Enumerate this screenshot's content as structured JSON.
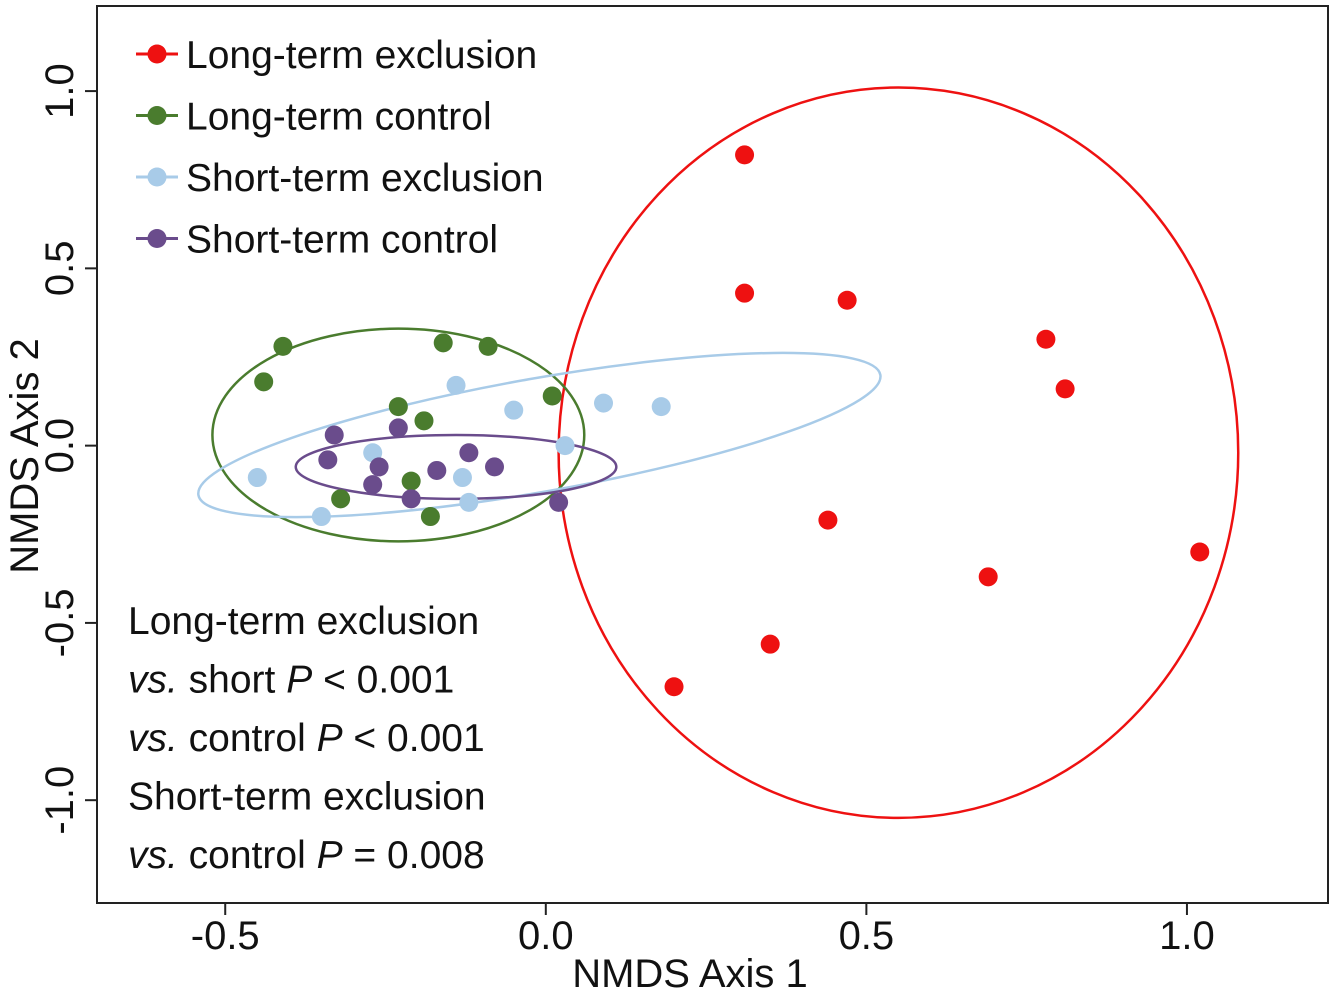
{
  "chart_data": {
    "type": "scatter",
    "xlabel": "NMDS Axis 1",
    "ylabel": "NMDS Axis 2",
    "xlim": [
      -0.7,
      1.22
    ],
    "ylim": [
      -1.29,
      1.24
    ],
    "xticks": [
      -0.5,
      0.0,
      0.5,
      1.0
    ],
    "xtick_labels": [
      "-0.5",
      "0.0",
      "0.5",
      "1.0"
    ],
    "yticks": [
      -1.0,
      -0.5,
      0.0,
      0.5,
      1.0
    ],
    "ytick_labels": [
      "-1.0",
      "-0.5",
      "0.0",
      "0.5",
      "1.0"
    ],
    "grid": false,
    "legend_position": "top-left",
    "series": [
      {
        "name": "Long-term exclusion",
        "color": "#ee1111",
        "points": [
          [
            0.31,
            0.82
          ],
          [
            0.31,
            0.43
          ],
          [
            0.47,
            0.41
          ],
          [
            0.78,
            0.3
          ],
          [
            0.81,
            0.16
          ],
          [
            0.44,
            -0.21
          ],
          [
            0.69,
            -0.37
          ],
          [
            1.02,
            -0.3
          ],
          [
            0.35,
            -0.56
          ],
          [
            0.2,
            -0.68
          ]
        ],
        "ellipse": {
          "cx": 0.55,
          "cy": -0.02,
          "rx": 0.53,
          "ry": 1.03,
          "angle": 0
        }
      },
      {
        "name": "Long-term control",
        "color": "#4a7c2e",
        "points": [
          [
            -0.41,
            0.28
          ],
          [
            -0.44,
            0.18
          ],
          [
            -0.16,
            0.29
          ],
          [
            -0.09,
            0.28
          ],
          [
            0.01,
            0.14
          ],
          [
            -0.23,
            0.11
          ],
          [
            -0.19,
            0.07
          ],
          [
            -0.32,
            -0.15
          ],
          [
            -0.21,
            -0.1
          ],
          [
            -0.18,
            -0.2
          ]
        ],
        "ellipse": {
          "cx": -0.23,
          "cy": 0.03,
          "rx": 0.29,
          "ry": 0.3,
          "angle": 0
        }
      },
      {
        "name": "Short-term exclusion",
        "color": "#a8cbe8",
        "points": [
          [
            -0.45,
            -0.09
          ],
          [
            -0.35,
            -0.2
          ],
          [
            -0.27,
            -0.02
          ],
          [
            -0.14,
            0.17
          ],
          [
            -0.05,
            0.1
          ],
          [
            0.03,
            0.0
          ],
          [
            0.09,
            0.12
          ],
          [
            0.18,
            0.11
          ],
          [
            -0.13,
            -0.09
          ],
          [
            -0.12,
            -0.16
          ]
        ],
        "ellipse": {
          "cx": -0.01,
          "cy": 0.03,
          "rx": 0.54,
          "ry": 0.16,
          "angle": 10
        }
      },
      {
        "name": "Short-term control",
        "color": "#6a4c8c",
        "points": [
          [
            -0.33,
            0.03
          ],
          [
            -0.34,
            -0.04
          ],
          [
            -0.27,
            -0.11
          ],
          [
            -0.26,
            -0.06
          ],
          [
            -0.23,
            0.05
          ],
          [
            -0.21,
            -0.15
          ],
          [
            -0.17,
            -0.07
          ],
          [
            -0.12,
            -0.02
          ],
          [
            -0.08,
            -0.06
          ],
          [
            0.02,
            -0.16
          ]
        ],
        "ellipse": {
          "cx": -0.14,
          "cy": -0.06,
          "rx": 0.25,
          "ry": 0.09,
          "angle": 0
        }
      }
    ],
    "annotations": [
      {
        "line": "line1",
        "segments": [
          {
            "text": "Long-term exclusion",
            "italic": false
          }
        ]
      },
      {
        "line": "line2",
        "segments": [
          {
            "text": "vs.",
            "italic": true
          },
          {
            "text": " short ",
            "italic": false
          },
          {
            "text": "P",
            "italic": true
          },
          {
            "text": " < 0.001",
            "italic": false
          }
        ]
      },
      {
        "line": "line3",
        "segments": [
          {
            "text": "vs.",
            "italic": true
          },
          {
            "text": " control ",
            "italic": false
          },
          {
            "text": "P",
            "italic": true
          },
          {
            "text": " < 0.001",
            "italic": false
          }
        ]
      },
      {
        "line": "line4",
        "segments": [
          {
            "text": "Short-term exclusion",
            "italic": false
          }
        ]
      },
      {
        "line": "line5",
        "segments": [
          {
            "text": "vs.",
            "italic": true
          },
          {
            "text": " control ",
            "italic": false
          },
          {
            "text": "P",
            "italic": true
          },
          {
            "text": " = 0.008",
            "italic": false
          }
        ]
      }
    ]
  }
}
